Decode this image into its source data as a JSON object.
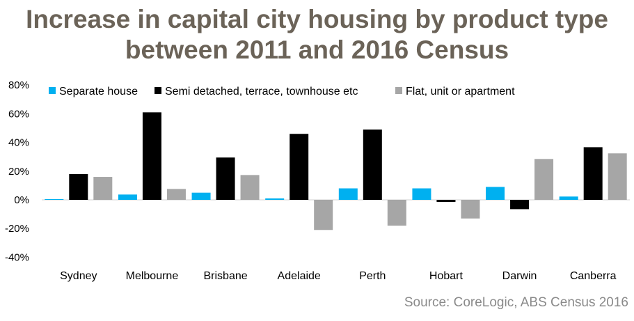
{
  "chart_data": {
    "type": "bar",
    "title": "Increase in capital city housing by product type between 2011 and 2016 Census",
    "categories": [
      "Sydney",
      "Melbourne",
      "Brisbane",
      "Adelaide",
      "Perth",
      "Hobart",
      "Darwin",
      "Canberra"
    ],
    "series": [
      {
        "name": "Separate house",
        "color": "#00b0f0",
        "values": [
          0.5,
          3.7,
          5,
          1,
          8,
          8,
          9,
          2.3
        ]
      },
      {
        "name": "Semi detached, terrace, townhouse etc",
        "color": "#000000",
        "values": [
          18,
          61,
          29.5,
          46,
          49,
          -1.5,
          -6.5,
          36.7
        ]
      },
      {
        "name": "Flat, unit or apartment",
        "color": "#a6a6a6",
        "values": [
          16,
          7.6,
          17.3,
          -21,
          -18,
          -13,
          28.5,
          32.4
        ]
      }
    ],
    "yticks": [
      "80%",
      "60%",
      "40%",
      "20%",
      "0%",
      "-20%",
      "-40%"
    ],
    "ylim": [
      -40,
      80
    ],
    "legend": "top",
    "grid": false,
    "source": "Source: CoreLogic, ABS Census 2016"
  }
}
